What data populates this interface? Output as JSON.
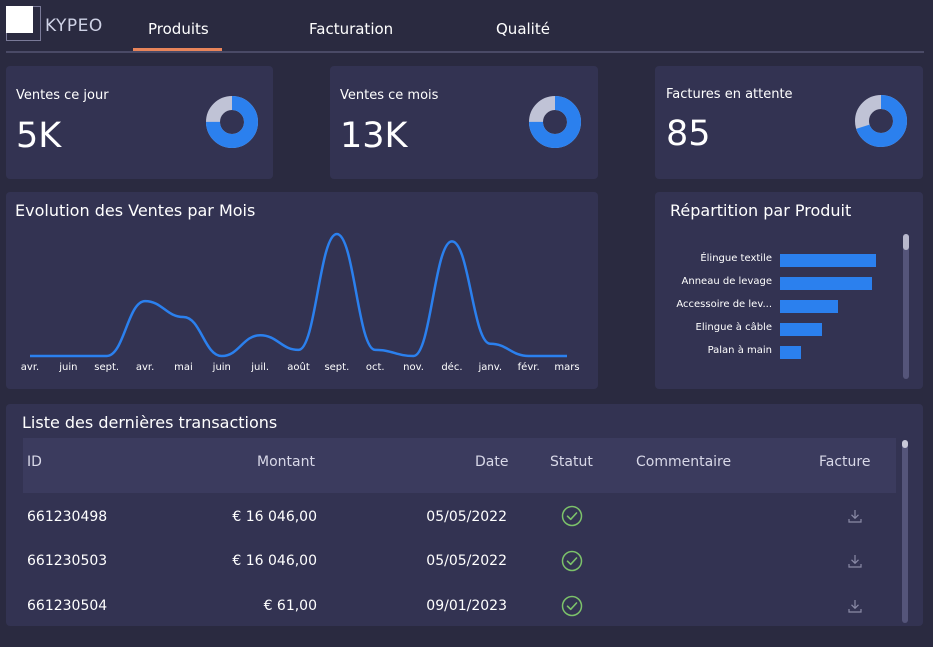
{
  "brand": {
    "name": "KYPEO"
  },
  "nav": {
    "tabs": [
      "Produits",
      "Facturation",
      "Qualité"
    ],
    "active": 0
  },
  "kpis": [
    {
      "label": "Ventes ce jour",
      "value": "5K",
      "donut_fraction": 0.75
    },
    {
      "label": "Ventes ce mois",
      "value": "13K",
      "donut_fraction": 0.75
    },
    {
      "label": "Factures en attente",
      "value": "85",
      "donut_fraction": 0.7
    }
  ],
  "colors": {
    "accent": "#2b80ee",
    "donut_rest": "#c0c3d6",
    "tab_underline": "#e8845a",
    "status_ok": "#7cc26a"
  },
  "sales_chart": {
    "title": "Evolution des Ventes par Mois",
    "chart_data": {
      "type": "line",
      "title": "Evolution des Ventes par Mois",
      "x": [
        "avr.",
        "juin",
        "sept.",
        "avr.",
        "mai",
        "juin",
        "juil.",
        "août",
        "sept.",
        "oct.",
        "nov.",
        "déc.",
        "janv.",
        "févr.",
        "mars"
      ],
      "values": [
        0,
        0,
        0,
        0.45,
        0.32,
        0,
        0.17,
        0.05,
        1.0,
        0.05,
        0,
        0.94,
        0.1,
        0,
        0
      ],
      "ylim": [
        0,
        1
      ],
      "grid": false,
      "xlabel": "",
      "ylabel": ""
    }
  },
  "product_chart": {
    "title": "Répartition par Produit",
    "chart_data": {
      "type": "bar",
      "orientation": "horizontal",
      "categories": [
        "Élingue textile",
        "Anneau de levage",
        "Accessoire de lev...",
        "Elingue à câble",
        "Palan à main"
      ],
      "values": [
        96,
        92,
        58,
        42,
        21
      ],
      "xlim": [
        0,
        100
      ]
    }
  },
  "transactions": {
    "title": "Liste des dernières transactions",
    "columns": [
      "ID",
      "Montant",
      "Date",
      "Statut",
      "Commentaire",
      "Facture"
    ],
    "rows": [
      {
        "id": "661230498",
        "montant": "€ 16 046,00",
        "date": "05/05/2022",
        "statut": "check-circle-icon",
        "commentaire": "",
        "facture": "download-icon"
      },
      {
        "id": "661230503",
        "montant": "€ 16 046,00",
        "date": "05/05/2022",
        "statut": "check-circle-icon",
        "commentaire": "",
        "facture": "download-icon"
      },
      {
        "id": "661230504",
        "montant": "€ 61,00",
        "date": "09/01/2023",
        "statut": "check-circle-icon",
        "commentaire": "",
        "facture": "download-icon"
      }
    ]
  }
}
